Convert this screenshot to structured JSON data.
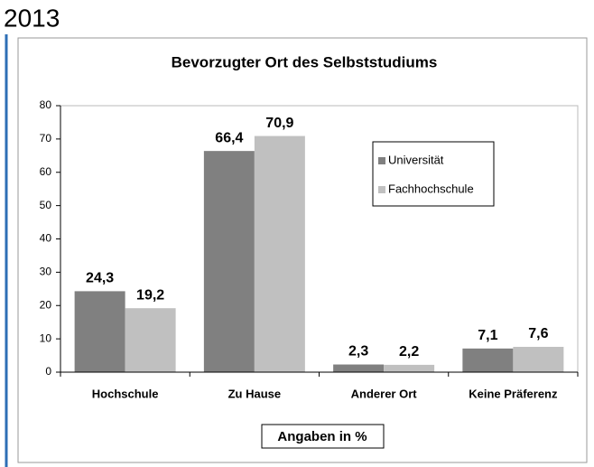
{
  "heading": "2013",
  "chart_data": {
    "type": "bar",
    "title": "Bevorzugter Ort des Selbststudiums",
    "categories": [
      "Hochschule",
      "Zu Hause",
      "Anderer Ort",
      "Keine Präferenz"
    ],
    "series": [
      {
        "name": "Universität",
        "color": "#808080",
        "values": [
          24.3,
          66.4,
          2.3,
          7.1
        ],
        "value_labels": [
          "24,3",
          "66,4",
          "2,3",
          "7,1"
        ]
      },
      {
        "name": "Fachhochschule",
        "color": "#c0c0c0",
        "values": [
          19.2,
          70.9,
          2.2,
          7.6
        ],
        "value_labels": [
          "19,2",
          "70,9",
          "2,2",
          "7,6"
        ]
      }
    ],
    "ylim": [
      0,
      80
    ],
    "yticks": [
      0,
      10,
      20,
      30,
      40,
      50,
      60,
      70,
      80
    ],
    "grid": false,
    "legend": "upper right",
    "annotation": "Angaben in %"
  }
}
